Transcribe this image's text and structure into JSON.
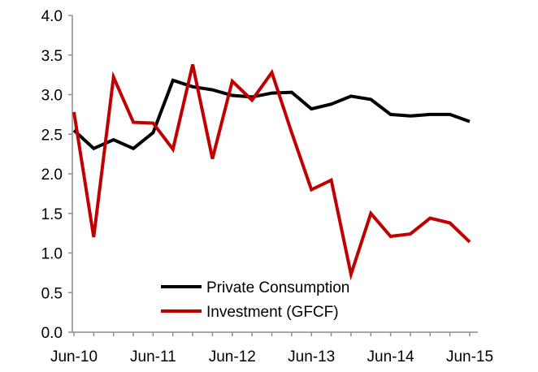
{
  "chart_data": {
    "type": "line",
    "title": "",
    "xlabel": "",
    "ylabel": "",
    "ylim": [
      0,
      4
    ],
    "yticks": [
      0.0,
      0.5,
      1.0,
      1.5,
      2.0,
      2.5,
      3.0,
      3.5,
      4.0
    ],
    "ytick_labels": [
      "0.0",
      "0.5",
      "1.0",
      "1.5",
      "2.0",
      "2.5",
      "3.0",
      "3.5",
      "4.0"
    ],
    "xtick_labels": [
      "Jun-10",
      "Jun-11",
      "Jun-12",
      "Jun-13",
      "Jun-14",
      "Jun-15"
    ],
    "x": [
      "Jun-10",
      "Sep-10",
      "Dec-10",
      "Mar-11",
      "Jun-11",
      "Sep-11",
      "Dec-11",
      "Mar-12",
      "Jun-12",
      "Sep-12",
      "Dec-12",
      "Mar-13",
      "Jun-13",
      "Sep-13",
      "Dec-13",
      "Mar-14",
      "Jun-14",
      "Sep-14",
      "Dec-14",
      "Mar-15",
      "Jun-15"
    ],
    "grid": false,
    "legend_position": "bottom-center",
    "series": [
      {
        "name": "Private Consumption",
        "color": "#000000",
        "values": [
          2.55,
          2.32,
          2.43,
          2.32,
          2.52,
          3.18,
          3.1,
          3.06,
          2.99,
          2.97,
          3.02,
          3.03,
          2.82,
          2.88,
          2.98,
          2.94,
          2.75,
          2.73,
          2.75,
          2.75,
          2.66
        ]
      },
      {
        "name": "Investment (GFCF)",
        "color": "#c00000",
        "values": [
          2.78,
          1.2,
          3.22,
          2.65,
          2.64,
          2.31,
          3.38,
          2.19,
          3.17,
          2.93,
          3.28,
          2.52,
          1.8,
          1.92,
          0.73,
          1.5,
          1.21,
          1.24,
          1.44,
          1.38,
          1.14
        ]
      }
    ]
  }
}
